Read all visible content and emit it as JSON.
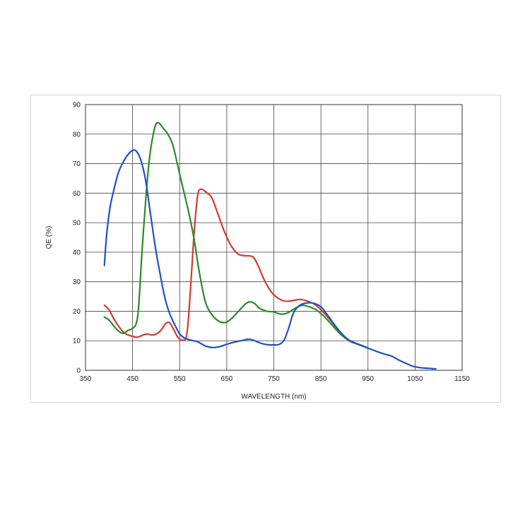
{
  "chart_data": {
    "type": "line",
    "xlabel": "WAVELENGTH (nm)",
    "ylabel": "QE (%)",
    "xlim": [
      350,
      1150
    ],
    "ylim": [
      0,
      90
    ],
    "x_ticks": [
      350,
      450,
      550,
      650,
      750,
      850,
      950,
      1050,
      1150
    ],
    "x_tick_labels": [
      "350",
      "450",
      "550",
      "650",
      "750",
      "850",
      "950",
      "1050",
      "1150"
    ],
    "y_ticks": [
      0,
      10,
      20,
      30,
      40,
      50,
      60,
      70,
      80,
      90
    ],
    "y_tick_labels": [
      "0",
      "10",
      "20",
      "30",
      "40",
      "50",
      "60",
      "70",
      "80",
      "90"
    ],
    "grid": true,
    "series": [
      {
        "color": "#d23a30",
        "points": [
          [
            390,
            22
          ],
          [
            400,
            20.5
          ],
          [
            410,
            17.5
          ],
          [
            420,
            15
          ],
          [
            430,
            13
          ],
          [
            440,
            12
          ],
          [
            450,
            11.5
          ],
          [
            460,
            11.2
          ],
          [
            470,
            11.8
          ],
          [
            480,
            12.3
          ],
          [
            490,
            12
          ],
          [
            500,
            12.3
          ],
          [
            510,
            13.5
          ],
          [
            520,
            15.8
          ],
          [
            528,
            16.2
          ],
          [
            535,
            14.5
          ],
          [
            545,
            11.5
          ],
          [
            555,
            10.2
          ],
          [
            565,
            12
          ],
          [
            572,
            25
          ],
          [
            580,
            45
          ],
          [
            588,
            59
          ],
          [
            595,
            61.3
          ],
          [
            605,
            60.5
          ],
          [
            618,
            58.5
          ],
          [
            630,
            53.5
          ],
          [
            645,
            47
          ],
          [
            660,
            42
          ],
          [
            675,
            39.3
          ],
          [
            690,
            38.8
          ],
          [
            705,
            38.5
          ],
          [
            715,
            36
          ],
          [
            730,
            30.5
          ],
          [
            745,
            26.5
          ],
          [
            760,
            24.3
          ],
          [
            775,
            23.4
          ],
          [
            790,
            23.6
          ],
          [
            805,
            24
          ],
          [
            820,
            23.5
          ],
          [
            835,
            22.5
          ],
          [
            850,
            20.5
          ],
          [
            870,
            17
          ],
          [
            890,
            13
          ],
          [
            910,
            10
          ],
          [
            930,
            8.8
          ],
          [
            950,
            7.5
          ]
        ]
      },
      {
        "color": "#2a8a2a",
        "points": [
          [
            390,
            18
          ],
          [
            400,
            17
          ],
          [
            410,
            15
          ],
          [
            420,
            13.3
          ],
          [
            430,
            12.5
          ],
          [
            440,
            13.5
          ],
          [
            450,
            14.2
          ],
          [
            458,
            16
          ],
          [
            463,
            22
          ],
          [
            470,
            40
          ],
          [
            478,
            58
          ],
          [
            486,
            72
          ],
          [
            494,
            80
          ],
          [
            500,
            83.5
          ],
          [
            507,
            83.6
          ],
          [
            515,
            82
          ],
          [
            525,
            80
          ],
          [
            535,
            76.5
          ],
          [
            545,
            70
          ],
          [
            555,
            63
          ],
          [
            567,
            55
          ],
          [
            580,
            45
          ],
          [
            592,
            33
          ],
          [
            605,
            23
          ],
          [
            620,
            18.5
          ],
          [
            635,
            16.5
          ],
          [
            648,
            16.2
          ],
          [
            660,
            17.5
          ],
          [
            675,
            20
          ],
          [
            690,
            22.5
          ],
          [
            700,
            23.2
          ],
          [
            710,
            22.5
          ],
          [
            720,
            21
          ],
          [
            735,
            20
          ],
          [
            750,
            19.8
          ],
          [
            765,
            19
          ],
          [
            780,
            19.5
          ],
          [
            795,
            21
          ],
          [
            810,
            22
          ],
          [
            825,
            21.5
          ],
          [
            840,
            20.5
          ],
          [
            855,
            18.5
          ],
          [
            870,
            16
          ],
          [
            890,
            12.5
          ],
          [
            910,
            10
          ],
          [
            930,
            8.7
          ],
          [
            950,
            7.5
          ]
        ]
      },
      {
        "color": "#2050c8",
        "points": [
          [
            390,
            35.5
          ],
          [
            395,
            46
          ],
          [
            402,
            55
          ],
          [
            410,
            61
          ],
          [
            420,
            67
          ],
          [
            430,
            70.5
          ],
          [
            440,
            73
          ],
          [
            450,
            74.5
          ],
          [
            458,
            74.2
          ],
          [
            468,
            71
          ],
          [
            478,
            64
          ],
          [
            488,
            53
          ],
          [
            498,
            42
          ],
          [
            508,
            33
          ],
          [
            518,
            25
          ],
          [
            528,
            19.5
          ],
          [
            540,
            15.3
          ],
          [
            550,
            12.3
          ],
          [
            562,
            10.8
          ],
          [
            575,
            10.2
          ],
          [
            590,
            9.5
          ],
          [
            605,
            8.2
          ],
          [
            620,
            7.7
          ],
          [
            635,
            8
          ],
          [
            650,
            8.8
          ],
          [
            665,
            9.5
          ],
          [
            680,
            10
          ],
          [
            695,
            10.5
          ],
          [
            705,
            10.3
          ],
          [
            720,
            9.3
          ],
          [
            735,
            8.7
          ],
          [
            750,
            8.6
          ],
          [
            762,
            8.8
          ],
          [
            772,
            10.3
          ],
          [
            782,
            14.5
          ],
          [
            792,
            19.5
          ],
          [
            805,
            22
          ],
          [
            820,
            22.8
          ],
          [
            835,
            22.7
          ],
          [
            850,
            21.5
          ],
          [
            865,
            18.5
          ],
          [
            880,
            15.2
          ],
          [
            895,
            12.3
          ],
          [
            910,
            10.2
          ],
          [
            925,
            9.1
          ],
          [
            940,
            8.2
          ],
          [
            955,
            7.2
          ],
          [
            970,
            6.3
          ],
          [
            985,
            5.5
          ],
          [
            1000,
            4.8
          ],
          [
            1015,
            3.5
          ],
          [
            1030,
            2.4
          ],
          [
            1045,
            1.4
          ],
          [
            1060,
            0.9
          ],
          [
            1075,
            0.7
          ],
          [
            1090,
            0.5
          ],
          [
            1094,
            0.5
          ]
        ]
      }
    ]
  }
}
